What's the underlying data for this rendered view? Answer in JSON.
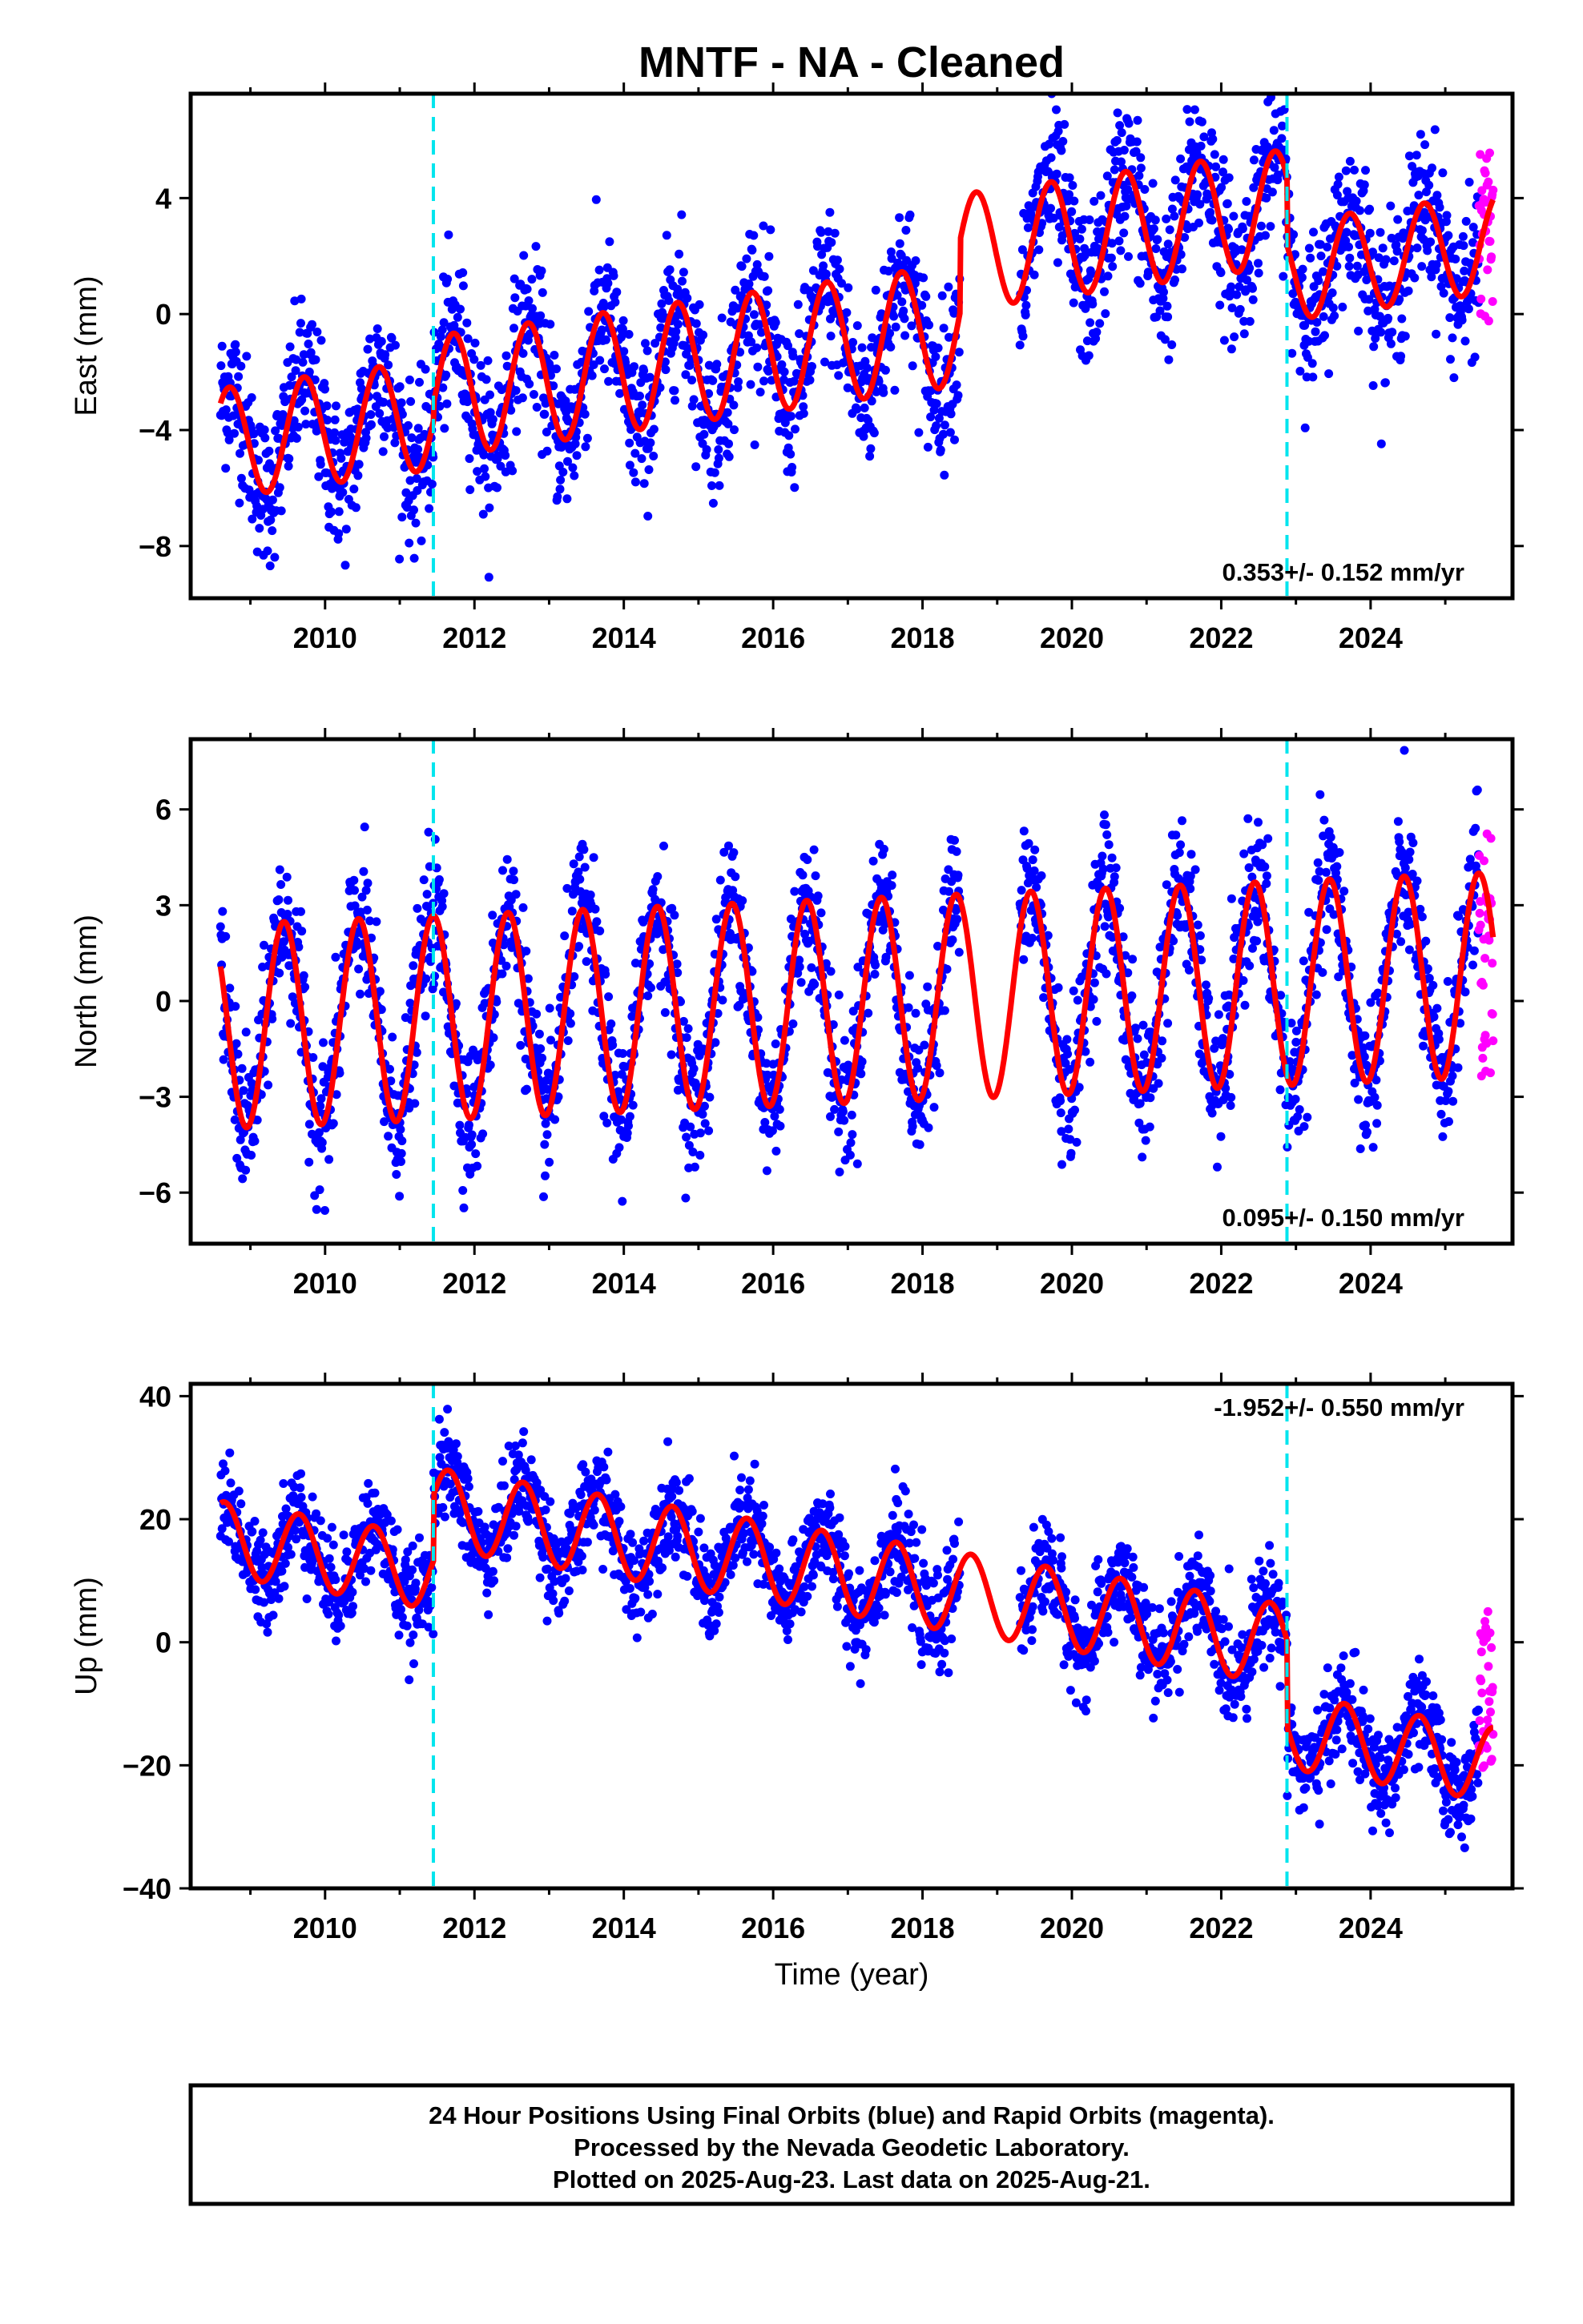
{
  "title": "MNTF  - NA - Cleaned",
  "colors": {
    "final": "#0000ff",
    "rapid": "#ff00ff",
    "model": "#ff0000",
    "break": "#00e5ee",
    "frame": "#000000"
  },
  "footer": {
    "line1": "24 Hour Positions Using Final Orbits (blue) and Rapid Orbits (magenta).",
    "line2": "Processed by the Nevada Geodetic Laboratory.",
    "line3": "Plotted on 2025-Aug-23. Last data on 2025-Aug-21."
  },
  "chart_data": [
    {
      "type": "scatter",
      "component": "east",
      "ylabel": "East (mm)",
      "xlabel": "",
      "xlim": [
        2008.2,
        2025.9
      ],
      "ylim": [
        -9.8,
        7.6
      ],
      "xticks": [
        2010,
        2012,
        2014,
        2016,
        2018,
        2020,
        2022,
        2024
      ],
      "xtick_labels": [
        "2010",
        "2012",
        "2014",
        "2016",
        "2018",
        "2020",
        "2022",
        "2024"
      ],
      "yticks": [
        -8,
        -4,
        0,
        4
      ],
      "ytick_labels": [
        "−8",
        "−4",
        "0",
        "4"
      ],
      "rate_label": "0.353+/- 0.152 mm/yr",
      "rate_position": "bottom-right",
      "breaks": [
        2011.45,
        2022.88
      ],
      "gaps": [
        [
          2018.5,
          2019.3
        ]
      ],
      "data_start": 2008.6,
      "last_final": 2025.45,
      "last_rapid": 2025.64,
      "model_segments": [
        {
          "t0": 2008.6,
          "t1": 2011.45,
          "offset": -1.5,
          "amp": 1.9,
          "phase_peak": 0.72
        },
        {
          "t0": 2011.45,
          "t1": 2018.5,
          "offset": -0.9,
          "amp": 2.1,
          "phase_peak": 0.72
        },
        {
          "t0": 2018.5,
          "t1": 2022.88,
          "offset": 1.6,
          "amp": 2.0,
          "phase_peak": 0.72
        },
        {
          "t0": 2022.88,
          "t1": 2025.64,
          "offset": -0.6,
          "amp": 1.7,
          "phase_peak": 0.72
        }
      ],
      "trend_mm_per_yr": 0.353,
      "scatter_sd": 1.3,
      "rapid_range": [
        -0.4,
        6.0
      ]
    },
    {
      "type": "scatter",
      "component": "north",
      "ylabel": "North (mm)",
      "xlabel": "",
      "xlim": [
        2008.2,
        2025.9
      ],
      "ylim": [
        -7.6,
        8.2
      ],
      "xticks": [
        2010,
        2012,
        2014,
        2016,
        2018,
        2020,
        2022,
        2024
      ],
      "xtick_labels": [
        "2010",
        "2012",
        "2014",
        "2016",
        "2018",
        "2020",
        "2022",
        "2024"
      ],
      "yticks": [
        -6,
        -3,
        0,
        3,
        6
      ],
      "ytick_labels": [
        "−6",
        "−3",
        "0",
        "3",
        "6"
      ],
      "rate_label": "0.095+/- 0.150 mm/yr",
      "rate_position": "bottom-right",
      "breaks": [
        2011.45,
        2022.88
      ],
      "gaps": [
        [
          2018.5,
          2019.3
        ]
      ],
      "data_start": 2008.6,
      "last_final": 2025.45,
      "last_rapid": 2025.64,
      "model_segments": [
        {
          "t0": 2008.6,
          "t1": 2025.64,
          "offset": 0.0,
          "amp": 3.2,
          "phase_peak": 0.45
        }
      ],
      "trend_mm_per_yr": 0.095,
      "scatter_sd": 1.1,
      "rapid_range": [
        -2.4,
        6.0
      ]
    },
    {
      "type": "scatter",
      "component": "up",
      "ylabel": "Up (mm)",
      "xlabel": "Time (year)",
      "xlim": [
        2008.2,
        2025.9
      ],
      "ylim": [
        -40,
        42
      ],
      "xticks": [
        2010,
        2012,
        2014,
        2016,
        2018,
        2020,
        2022,
        2024
      ],
      "xtick_labels": [
        "2010",
        "2012",
        "2014",
        "2016",
        "2018",
        "2020",
        "2022",
        "2024"
      ],
      "yticks": [
        -40,
        -20,
        0,
        20,
        40
      ],
      "ytick_labels": [
        "−40",
        "−20",
        "0",
        "20",
        "40"
      ],
      "rate_label": "-1.952+/- 0.550 mm/yr",
      "rate_position": "top-right",
      "breaks": [
        2011.45,
        2022.88
      ],
      "gaps": [
        [
          2018.5,
          2019.3
        ]
      ],
      "data_start": 2008.6,
      "last_final": 2025.45,
      "last_rapid": 2025.64,
      "model_segments": [
        {
          "t0": 2008.6,
          "t1": 2011.45,
          "offset": 0.5,
          "amp": 6.0,
          "phase_peak": 0.65
        },
        {
          "t0": 2011.45,
          "t1": 2022.88,
          "offset": 11.0,
          "amp": 6.5,
          "phase_peak": 0.65
        },
        {
          "t0": 2022.88,
          "t1": 2025.64,
          "offset": -3.0,
          "amp": 6.0,
          "phase_peak": 0.65
        }
      ],
      "trend_mm_per_yr": -1.952,
      "scatter_sd": 4.0,
      "rapid_range": [
        -21,
        5
      ]
    }
  ]
}
